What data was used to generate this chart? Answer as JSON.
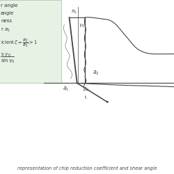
{
  "bg_color": "#ffffff",
  "legend_bg": "#e8f2e4",
  "line_color": "#444444",
  "caption": "representation of chip reduction coefficient and shear angle"
}
